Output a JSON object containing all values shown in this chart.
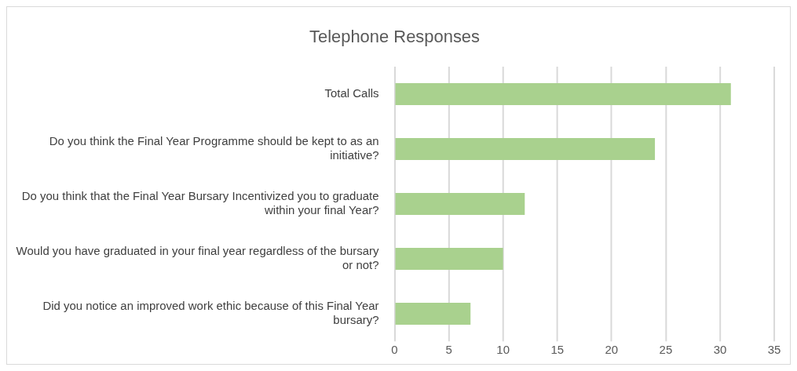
{
  "chart_data": {
    "type": "bar",
    "orientation": "horizontal",
    "title": "Telephone Responses",
    "categories": [
      "Total Calls",
      "Do you think the Final Year Programme should be kept to as an initiative?",
      "Do you think that the Final Year Bursary Incentivized you to graduate within your final Year?",
      "Would you have graduated in your final year regardless of the bursary or not?",
      "Did you notice an improved work ethic because of this Final Year bursary?"
    ],
    "values": [
      31,
      24,
      12,
      10,
      7
    ],
    "color": "#a9d18e",
    "xlim": [
      0,
      35
    ],
    "xticks": [
      0,
      5,
      10,
      15,
      20,
      25,
      30,
      35
    ],
    "grid": "x",
    "legend": false
  }
}
